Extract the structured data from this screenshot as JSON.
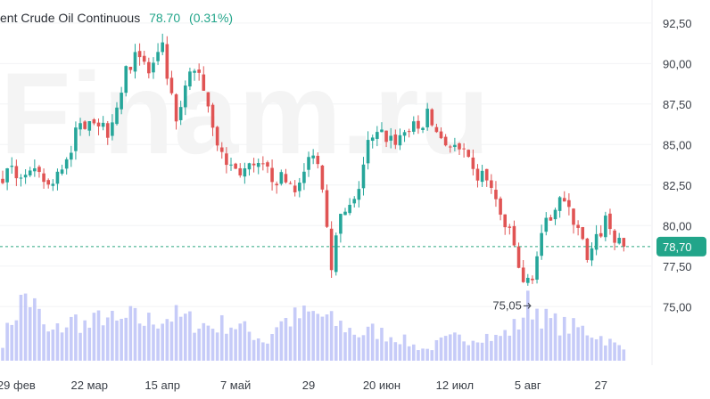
{
  "instrument": {
    "name": "ent Crude Oil Continuous",
    "last": "78.70",
    "change": "(0.31%)"
  },
  "watermark": "Finam.ru",
  "colors": {
    "up": "#26a69a",
    "down": "#e05454",
    "volume": "#b3baf5",
    "last_line": "#2fa882",
    "last_badge": "#22a58a",
    "axis_text": "#3a3f47",
    "grid": "#f2f3f5"
  },
  "chart_data": {
    "type": "candlestick",
    "title": "ent Crude Oil Continuous",
    "y_ticks": [
      "92,50",
      "90,00",
      "87,50",
      "85,00",
      "82,50",
      "80,00",
      "77,50",
      "75,00"
    ],
    "y_tick_values": [
      92.5,
      90.0,
      87.5,
      85.0,
      82.5,
      80.0,
      77.5,
      75.0
    ],
    "ylim": [
      74.3,
      93.15
    ],
    "x_ticks": [
      "29 фев",
      "22 мар",
      "15 апр",
      "7 май",
      "29",
      "20 июн",
      "12 июл",
      "5 авг",
      "27"
    ],
    "x_tick_candle_index": [
      3,
      19,
      35,
      51,
      67,
      83,
      99,
      115,
      131
    ],
    "last_price_label": "78,70",
    "last_price": 78.7,
    "annotation": {
      "text": "75,05",
      "value": 75.05,
      "candle_index": 116
    },
    "anchors": [
      [
        0,
        83.0
      ],
      [
        6,
        83.3
      ],
      [
        12,
        82.4
      ],
      [
        17,
        85.6
      ],
      [
        20,
        86.9
      ],
      [
        24,
        85.9
      ],
      [
        28,
        89.3
      ],
      [
        30,
        91.0
      ],
      [
        33,
        89.4
      ],
      [
        36,
        90.8
      ],
      [
        39,
        86.1
      ],
      [
        42,
        89.3
      ],
      [
        44,
        89.6
      ],
      [
        47,
        86.4
      ],
      [
        49,
        84.2
      ],
      [
        52,
        83.4
      ],
      [
        58,
        83.4
      ],
      [
        62,
        82.8
      ],
      [
        66,
        82.4
      ],
      [
        69,
        84.8
      ],
      [
        71,
        82.7
      ],
      [
        73,
        77.8
      ],
      [
        75,
        80.4
      ],
      [
        78,
        81.3
      ],
      [
        81,
        85.0
      ],
      [
        84,
        85.6
      ],
      [
        87,
        85.3
      ],
      [
        90,
        86.0
      ],
      [
        92,
        85.9
      ],
      [
        94,
        86.8
      ],
      [
        96,
        85.8
      ],
      [
        99,
        84.9
      ],
      [
        102,
        84.3
      ],
      [
        104,
        83.1
      ],
      [
        107,
        83.0
      ],
      [
        110,
        80.6
      ],
      [
        113,
        78.7
      ],
      [
        115,
        76.2
      ],
      [
        117,
        77.1
      ],
      [
        119,
        79.1
      ],
      [
        121,
        80.8
      ],
      [
        123,
        82.0
      ],
      [
        125,
        80.7
      ],
      [
        127,
        80.1
      ],
      [
        129,
        77.6
      ],
      [
        131,
        79.0
      ],
      [
        133,
        80.4
      ],
      [
        135,
        79.3
      ],
      [
        136,
        78.7
      ]
    ],
    "volume_profile": [
      [
        0,
        0.25
      ],
      [
        2,
        0.55
      ],
      [
        5,
        0.88
      ],
      [
        7,
        0.72
      ],
      [
        10,
        0.35
      ],
      [
        13,
        0.45
      ],
      [
        16,
        0.55
      ],
      [
        19,
        0.45
      ],
      [
        22,
        0.62
      ],
      [
        25,
        0.48
      ],
      [
        28,
        0.58
      ],
      [
        31,
        0.52
      ],
      [
        34,
        0.55
      ],
      [
        37,
        0.6
      ],
      [
        40,
        0.55
      ],
      [
        43,
        0.5
      ],
      [
        46,
        0.45
      ],
      [
        49,
        0.5
      ],
      [
        52,
        0.45
      ],
      [
        55,
        0.35
      ],
      [
        58,
        0.25
      ],
      [
        60,
        0.5
      ],
      [
        63,
        0.55
      ],
      [
        66,
        0.6
      ],
      [
        69,
        0.62
      ],
      [
        72,
        0.52
      ],
      [
        75,
        0.45
      ],
      [
        78,
        0.35
      ],
      [
        81,
        0.4
      ],
      [
        84,
        0.35
      ],
      [
        87,
        0.3
      ],
      [
        90,
        0.2
      ],
      [
        93,
        0.15
      ],
      [
        96,
        0.25
      ],
      [
        99,
        0.3
      ],
      [
        102,
        0.3
      ],
      [
        105,
        0.35
      ],
      [
        108,
        0.3
      ],
      [
        111,
        0.4
      ],
      [
        113,
        0.5
      ],
      [
        115,
        0.75
      ],
      [
        117,
        0.7
      ],
      [
        119,
        0.55
      ],
      [
        121,
        0.5
      ],
      [
        124,
        0.45
      ],
      [
        127,
        0.42
      ],
      [
        130,
        0.35
      ],
      [
        133,
        0.25
      ],
      [
        136,
        0.15
      ]
    ]
  }
}
